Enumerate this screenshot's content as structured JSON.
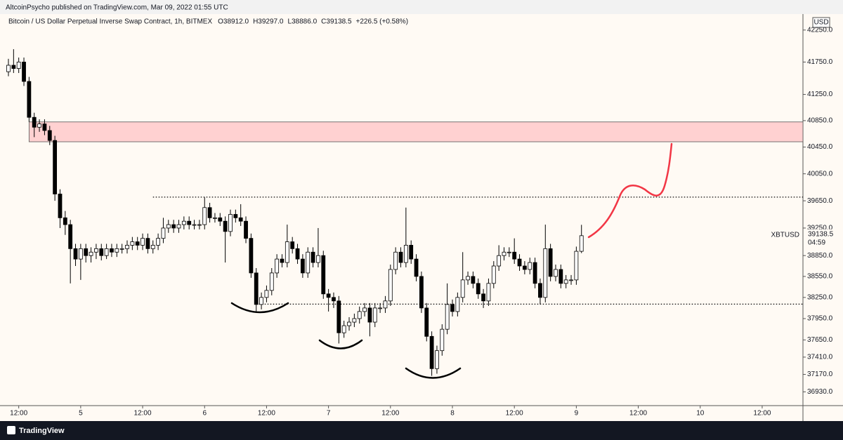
{
  "publisher": "AltcoinPsycho published on TradingView.com, Mar 09, 2022 01:55 UTC",
  "brand": "TradingView",
  "chart_data": {
    "type": "candlestick",
    "title": "Bitcoin / US Dollar Perpetual Inverse Swap Contract, 1h, BITMEX",
    "legend_values": [
      "O38912.0",
      "H39297.0",
      "L38886.0",
      "C39138.5",
      "+226.5 (+0.58%)"
    ],
    "currency": "USD",
    "symbol_label": "XBTUSD",
    "countdown": "04:59",
    "log_scale": true,
    "up_color": "#ffffff",
    "down_color": "#000000",
    "open": [
      41600,
      41700,
      41650,
      41750,
      41450,
      40900,
      40750,
      40800,
      40700,
      40550,
      39750,
      39400,
      39300,
      38950,
      38800,
      38950,
      38850,
      38900,
      38950,
      38850,
      38950,
      38900,
      38950,
      38950,
      39000,
      39050,
      39000,
      39100,
      38950,
      39000,
      39100,
      39250,
      39300,
      39250,
      39300,
      39350,
      39300,
      39300,
      39300,
      39550,
      39400,
      39400,
      39350,
      39200,
      39450,
      39400,
      39350,
      39100,
      38600,
      38150,
      38250,
      38350,
      38600,
      38800,
      38750,
      39050,
      38950,
      38800,
      38600,
      38900,
      38750,
      38850,
      38300,
      38250,
      38200,
      37750,
      37850,
      37900,
      37950,
      38050,
      38100,
      37900,
      38100,
      38100,
      38200,
      38650,
      38900,
      38750,
      39000,
      38800,
      38550,
      38100,
      37700,
      37250,
      37500,
      37800,
      38150,
      38050,
      38250,
      38500,
      38550,
      38450,
      38300,
      38200,
      38450,
      38700,
      38850,
      38900,
      38900,
      38800,
      38700,
      38650,
      38750,
      38450,
      38250,
      38950,
      38550,
      38650,
      38450,
      38500,
      38500,
      38912
    ],
    "high": [
      41800,
      41950,
      41820,
      41820,
      41520,
      40970,
      40870,
      40870,
      40770,
      40620,
      39820,
      39500,
      39370,
      39020,
      39020,
      39020,
      38970,
      39020,
      39020,
      39020,
      39020,
      39020,
      39020,
      39070,
      39120,
      39120,
      39170,
      39170,
      39070,
      39170,
      39400,
      39370,
      39370,
      39370,
      39420,
      39420,
      39370,
      39370,
      39700,
      39620,
      39470,
      39470,
      39420,
      39520,
      39520,
      39600,
      39420,
      39170,
      38670,
      38320,
      38420,
      38670,
      38870,
      38870,
      39300,
      39120,
      39020,
      38870,
      38970,
      38970,
      39250,
      38920,
      38370,
      38320,
      38270,
      37920,
      37970,
      38020,
      38120,
      38170,
      38170,
      38170,
      38170,
      38270,
      38720,
      38970,
      38970,
      39550,
      39070,
      38870,
      38620,
      38170,
      37770,
      37570,
      37870,
      38450,
      38220,
      38320,
      38900,
      38620,
      38620,
      38520,
      38370,
      38520,
      38770,
      39000,
      38970,
      38970,
      39100,
      38870,
      38770,
      38820,
      38820,
      38520,
      39300,
      39020,
      38720,
      38720,
      38570,
      38570,
      38980,
      39297
    ],
    "low": [
      41530,
      41580,
      41580,
      41380,
      40830,
      40600,
      40680,
      40630,
      40480,
      39650,
      39250,
      39150,
      38450,
      38700,
      38500,
      38750,
      38750,
      38800,
      38780,
      38800,
      38830,
      38830,
      38880,
      38880,
      38930,
      38930,
      38930,
      38880,
      38880,
      38930,
      39030,
      39180,
      39180,
      39180,
      39230,
      39230,
      39230,
      39230,
      39230,
      39330,
      39330,
      39280,
      38750,
      39130,
      39330,
      39280,
      39030,
      38530,
      38050,
      38080,
      38180,
      38280,
      38530,
      38680,
      38680,
      38880,
      38730,
      38530,
      38530,
      38680,
      38680,
      38230,
      38050,
      38100,
      37600,
      37680,
      37780,
      37830,
      37880,
      37980,
      37700,
      37830,
      38030,
      38030,
      38130,
      38580,
      38680,
      38680,
      38730,
      38480,
      38030,
      37630,
      37150,
      37180,
      37430,
      37730,
      37980,
      37980,
      38180,
      38430,
      38380,
      38230,
      38100,
      38130,
      38380,
      38630,
      38780,
      38830,
      38730,
      38630,
      38580,
      38580,
      38380,
      38150,
      38180,
      38480,
      38480,
      38380,
      38380,
      38430,
      38430,
      38886
    ],
    "close": [
      41700,
      41650,
      41750,
      41450,
      40900,
      40750,
      40800,
      40700,
      40550,
      39750,
      39400,
      39300,
      38950,
      38800,
      38950,
      38850,
      38900,
      38950,
      38850,
      38950,
      38900,
      38950,
      38950,
      39000,
      39050,
      39000,
      39100,
      38950,
      39000,
      39100,
      39250,
      39300,
      39250,
      39300,
      39350,
      39300,
      39300,
      39300,
      39550,
      39400,
      39400,
      39350,
      39200,
      39450,
      39400,
      39350,
      39100,
      38600,
      38150,
      38250,
      38350,
      38600,
      38800,
      38750,
      39050,
      38950,
      38800,
      38600,
      38900,
      38750,
      38850,
      38300,
      38250,
      38200,
      37750,
      37850,
      37900,
      37950,
      38050,
      38100,
      37900,
      38100,
      38100,
      38200,
      38650,
      38900,
      38750,
      39000,
      38800,
      38550,
      38100,
      37700,
      37250,
      37500,
      37800,
      38150,
      38050,
      38250,
      38500,
      38550,
      38450,
      38300,
      38200,
      38450,
      38700,
      38850,
      38900,
      38900,
      38800,
      38700,
      38650,
      38750,
      38450,
      38250,
      38950,
      38550,
      38650,
      38450,
      38500,
      38500,
      38912,
      39138.5
    ],
    "zone": {
      "low": 40530,
      "high": 40830,
      "from": 4,
      "color": "#ffd1d1"
    },
    "levels": [
      {
        "value": 39704,
        "from": 28
      },
      {
        "value": 38155,
        "from": 48
      }
    ],
    "xlim": [
      -1.63,
      153.9
    ],
    "xticks": [
      {
        "value": 2,
        "label": "12:00"
      },
      {
        "value": 14,
        "label": "5"
      },
      {
        "value": 26,
        "label": "12:00"
      },
      {
        "value": 38,
        "label": "6"
      },
      {
        "value": 50,
        "label": "12:00"
      },
      {
        "value": 62,
        "label": "7"
      },
      {
        "value": 74,
        "label": "12:00"
      },
      {
        "value": 86,
        "label": "8"
      },
      {
        "value": 98,
        "label": "12:00"
      },
      {
        "value": 110,
        "label": "9"
      },
      {
        "value": 122,
        "label": "12:00"
      },
      {
        "value": 134,
        "label": "10"
      },
      {
        "value": 146,
        "label": "12:00"
      }
    ],
    "ylim": [
      36770,
      42480
    ],
    "yticks": [
      {
        "value": 42250,
        "label": "42250.0"
      },
      {
        "value": 41750,
        "label": "41750.0"
      },
      {
        "value": 41250,
        "label": "41250.0"
      },
      {
        "value": 40850,
        "label": "40850.0"
      },
      {
        "value": 40450,
        "label": "40450.0"
      },
      {
        "value": 40050,
        "label": "40050.0"
      },
      {
        "value": 39650,
        "label": "39650.0"
      },
      {
        "value": 39250,
        "label": "39250.0"
      },
      {
        "value": 38850,
        "label": "38850.0"
      },
      {
        "value": 38550,
        "label": "38550.0"
      },
      {
        "value": 38250,
        "label": "38250.0"
      },
      {
        "value": 37950,
        "label": "37950.0"
      },
      {
        "value": 37650,
        "label": "37650.0"
      },
      {
        "value": 37410,
        "label": "37410.0"
      },
      {
        "value": 37170,
        "label": "37170.0"
      },
      {
        "value": 36930,
        "label": "36930.0"
      }
    ]
  }
}
